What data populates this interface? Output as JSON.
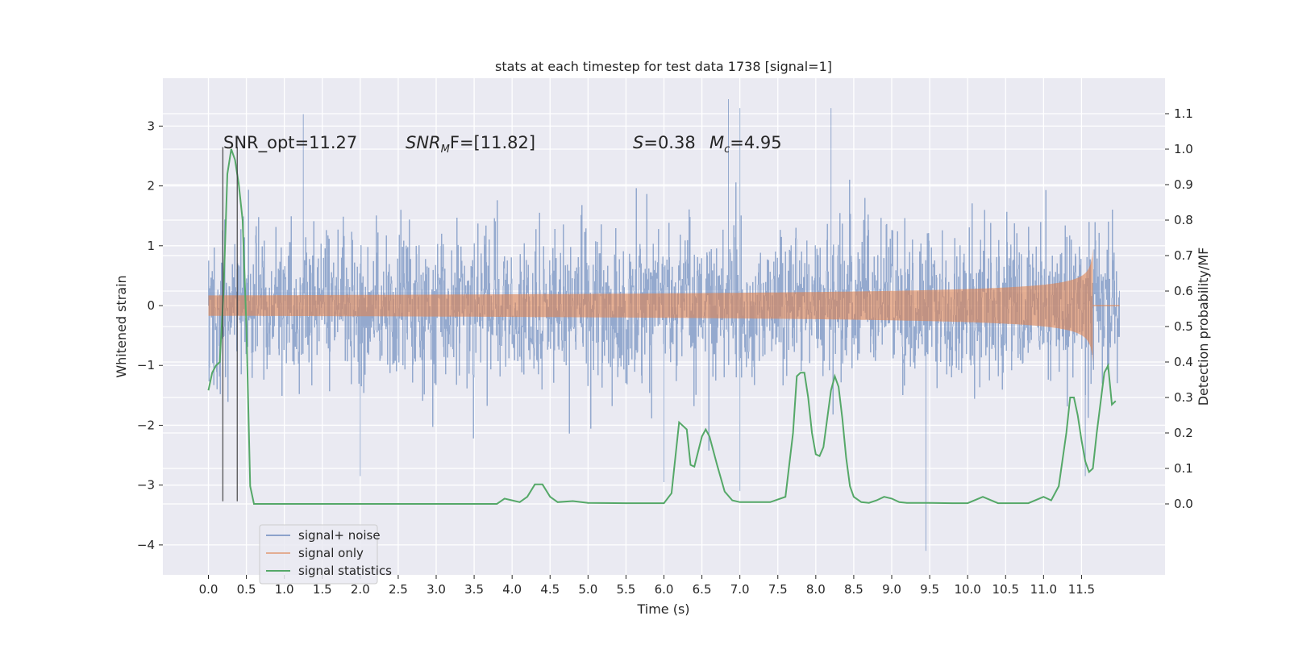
{
  "chart_data": {
    "type": "line",
    "title": "stats at each timestep for test data 1738 [signal=1]",
    "xlabel": "Time (s)",
    "ylabel": "Whitened strain",
    "ylabel_right": "Detection probability/MF",
    "xlim": [
      -0.6,
      12.6
    ],
    "ylim": [
      -4.5,
      3.8
    ],
    "ylim_right": [
      -0.2,
      1.2
    ],
    "x_ticks": [
      0.0,
      0.5,
      1.0,
      1.5,
      2.0,
      2.5,
      3.0,
      3.5,
      4.0,
      4.5,
      5.0,
      5.5,
      6.0,
      6.5,
      7.0,
      7.5,
      8.0,
      8.5,
      9.0,
      9.5,
      10.0,
      10.5,
      11.0,
      11.5
    ],
    "x_tick_labels": [
      "0.0",
      "0.5",
      "1.0",
      "1.5",
      "2.0",
      "2.5",
      "3.0",
      "3.5",
      "4.0",
      "4.5",
      "5.0",
      "5.5",
      "6.0",
      "6.5",
      "7.0",
      "7.5",
      "8.0",
      "8.5",
      "9.0",
      "9.5",
      "10.0",
      "10.5",
      "11.0",
      "11.5"
    ],
    "y_ticks": [
      -4,
      -3,
      -2,
      -1,
      0,
      1,
      2,
      3
    ],
    "y_tick_labels": [
      "−4",
      "−3",
      "−2",
      "−1",
      "0",
      "1",
      "2",
      "3"
    ],
    "y_right_ticks": [
      0.0,
      0.1,
      0.2,
      0.3,
      0.4,
      0.5,
      0.6,
      0.7,
      0.8,
      0.9,
      1.0,
      1.1
    ],
    "y_right_tick_labels": [
      "0.0",
      "0.1",
      "0.2",
      "0.3",
      "0.4",
      "0.5",
      "0.6",
      "0.7",
      "0.8",
      "0.9",
      "1.0",
      "1.1"
    ],
    "grid": true,
    "legend_position": "lower-left",
    "annotations": {
      "snr_opt": "SNR_opt=11.27",
      "snr_mf_main": "SNR",
      "snr_mf_sub": "M",
      "snr_mf_rest": "F=[11.82]",
      "s_var": "S",
      "s_val": "=0.38",
      "mc_var": "M",
      "mc_sub": "c",
      "mc_val": "=4.95"
    },
    "vlines": [
      {
        "x": 0.19,
        "y_from": -3.27,
        "y_to": 2.65
      },
      {
        "x": 0.38,
        "y_from": -3.27,
        "y_to": 2.65
      }
    ],
    "series": [
      {
        "name": "signal+ noise",
        "color": "#4c72b0",
        "style": "dense-noise",
        "t_start": 0.0,
        "t_end": 12.0,
        "envelope_typical": 1.5,
        "notable_peaks": [
          {
            "x": 1.25,
            "y": 3.2
          },
          {
            "x": 6.85,
            "y": 3.45
          },
          {
            "x": 7.0,
            "y": 3.3
          },
          {
            "x": 8.2,
            "y": 3.3
          },
          {
            "x": 9.45,
            "y": -4.1
          },
          {
            "x": 2.0,
            "y": -2.85
          },
          {
            "x": 6.0,
            "y": -2.95
          },
          {
            "x": 7.0,
            "y": -3.1
          },
          {
            "x": 11.55,
            "y": -2.85
          }
        ]
      },
      {
        "name": "signal only",
        "color": "#dd8452",
        "style": "chirp",
        "t_start": 0.0,
        "t_merge": 11.65,
        "t_end": 12.0,
        "amp_at_merge": 0.95
      },
      {
        "name": "signal statistics",
        "color": "#55a868",
        "axis": "right",
        "x": [
          0.0,
          0.05,
          0.1,
          0.15,
          0.2,
          0.25,
          0.3,
          0.35,
          0.4,
          0.45,
          0.5,
          0.55,
          0.6,
          1.0,
          2.0,
          3.0,
          3.8,
          3.9,
          4.0,
          4.1,
          4.2,
          4.3,
          4.4,
          4.5,
          4.6,
          4.8,
          5.0,
          5.5,
          6.0,
          6.1,
          6.2,
          6.3,
          6.35,
          6.4,
          6.5,
          6.55,
          6.6,
          6.7,
          6.8,
          6.9,
          7.0,
          7.2,
          7.4,
          7.6,
          7.7,
          7.75,
          7.8,
          7.85,
          7.9,
          7.95,
          8.0,
          8.05,
          8.1,
          8.15,
          8.2,
          8.25,
          8.3,
          8.35,
          8.4,
          8.45,
          8.5,
          8.6,
          8.7,
          8.8,
          8.9,
          9.0,
          9.1,
          9.2,
          9.5,
          9.8,
          10.0,
          10.2,
          10.4,
          10.6,
          10.8,
          11.0,
          11.1,
          11.2,
          11.3,
          11.35,
          11.4,
          11.45,
          11.5,
          11.55,
          11.6,
          11.65,
          11.7,
          11.8,
          11.85,
          11.9,
          11.95
        ],
        "values": [
          0.32,
          0.37,
          0.39,
          0.4,
          0.6,
          0.93,
          1.0,
          0.97,
          0.9,
          0.8,
          0.5,
          0.05,
          0.0,
          0.0,
          0.0,
          0.0,
          0.0,
          0.015,
          0.01,
          0.005,
          0.02,
          0.055,
          0.055,
          0.02,
          0.005,
          0.008,
          0.003,
          0.002,
          0.002,
          0.03,
          0.23,
          0.21,
          0.11,
          0.105,
          0.19,
          0.21,
          0.19,
          0.11,
          0.035,
          0.01,
          0.005,
          0.005,
          0.005,
          0.02,
          0.2,
          0.36,
          0.37,
          0.37,
          0.3,
          0.2,
          0.14,
          0.135,
          0.16,
          0.24,
          0.32,
          0.36,
          0.33,
          0.24,
          0.13,
          0.05,
          0.02,
          0.005,
          0.003,
          0.01,
          0.02,
          0.015,
          0.005,
          0.003,
          0.003,
          0.002,
          0.002,
          0.02,
          0.002,
          0.002,
          0.002,
          0.02,
          0.01,
          0.05,
          0.2,
          0.3,
          0.3,
          0.25,
          0.18,
          0.12,
          0.09,
          0.1,
          0.2,
          0.37,
          0.39,
          0.28,
          0.29
        ]
      }
    ]
  }
}
